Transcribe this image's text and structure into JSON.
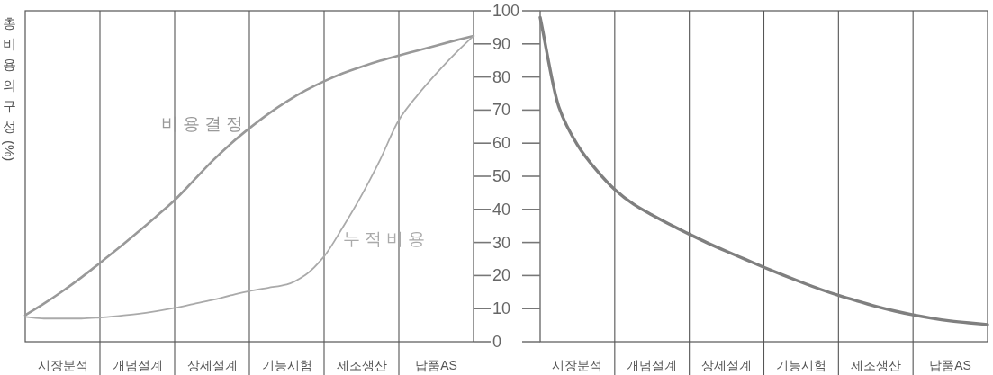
{
  "chart_data": [
    {
      "type": "line",
      "ylabel": "총 비용의 구성 (%)",
      "categories": [
        null,
        null,
        "시장분석",
        null,
        null,
        null,
        "개념설계",
        null,
        null,
        null,
        "상세설계",
        null,
        null,
        null,
        "기능시험",
        null,
        null,
        null,
        "제조생산",
        null,
        null,
        null,
        "납품AS",
        null,
        null
      ],
      "ylim": [
        0,
        100
      ],
      "yticks": [
        0,
        10,
        20,
        30,
        40,
        50,
        60,
        70,
        80,
        90,
        100
      ],
      "grid": "x",
      "series": [
        {
          "name": "비용결정",
          "color": "#999999",
          "values": [
            8,
            11.5,
            15.3,
            19.4,
            23.8,
            28.3,
            33,
            37.8,
            42.8,
            48.6,
            54.5,
            59.8,
            64.5,
            68.8,
            72.6,
            75.9,
            78.7,
            81.1,
            83.1,
            84.9,
            86.5,
            88,
            89.5,
            91,
            92.4
          ]
        },
        {
          "name": "누적비용",
          "color": "#aaaaaa",
          "values": [
            7.5,
            7,
            7,
            7,
            7.3,
            7.8,
            8.4,
            9.2,
            10.2,
            11.4,
            12.6,
            14,
            15.3,
            16.3,
            17.3,
            20.2,
            25.8,
            34.6,
            44.2,
            55,
            67,
            74.5,
            81,
            87,
            92.4
          ]
        }
      ]
    },
    {
      "type": "line",
      "categories": [
        null,
        null,
        "시장분석",
        null,
        null,
        null,
        "개념설계",
        null,
        null,
        null,
        "상세설계",
        null,
        null,
        null,
        "기능시험",
        null,
        null,
        null,
        "제조생산",
        null,
        null,
        null,
        "납품AS",
        null,
        null
      ],
      "ylim": [
        0,
        100
      ],
      "yticks": [
        0,
        10,
        20,
        30,
        40,
        50,
        60,
        70,
        80,
        90,
        100
      ],
      "grid": "x",
      "tick_labels": "x",
      "series": [
        {
          "color": "#7f7f7f",
          "values": [
            98,
            71,
            59.5,
            52,
            46,
            41.6,
            38.3,
            35.3,
            32.5,
            29.8,
            27.3,
            24.9,
            22.5,
            20.2,
            18,
            15.9,
            14,
            12.3,
            10.7,
            9.3,
            8.1,
            7.1,
            6.3,
            5.7,
            5.2
          ]
        }
      ]
    }
  ]
}
